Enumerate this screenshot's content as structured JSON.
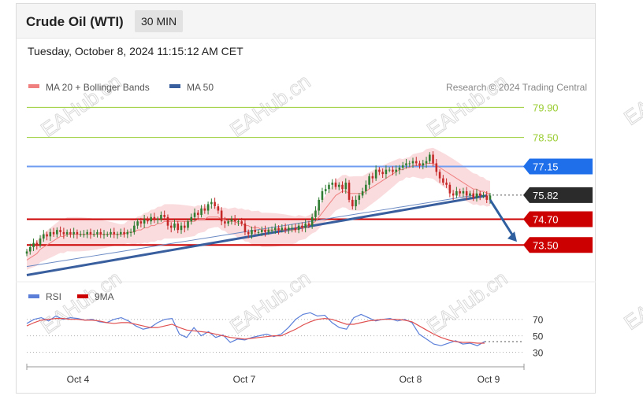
{
  "header": {
    "title": "Crude Oil (WTI)",
    "timeframe": "30 MIN",
    "datetime": "Tuesday, October 8, 2024 11:15:12 AM CET"
  },
  "legend": {
    "ma20": "MA 20 + Bollinger Bands",
    "ma50": "MA 50",
    "credit": "Research © 2024 Trading Central",
    "rsi": "RSI",
    "sma": "9MA"
  },
  "watermark": "EAHub.cn",
  "colors": {
    "candle_up": "#2e7d32",
    "candle_down": "#c62828",
    "bollinger": "#f8c9cc",
    "ma20": "#f08080",
    "ma50": "#3a5f9f",
    "blue_level": "#1f6feb",
    "red_level": "#cc0000",
    "green_level": "#9acd32",
    "rsi": "#5b7fd9",
    "sma": "#e05050"
  },
  "chart_data": [
    {
      "type": "candlestick",
      "name": "price",
      "x_labels": [
        "Oct 4",
        "Oct 7",
        "Oct 8",
        "Oct 9"
      ],
      "levels": [
        {
          "value": 79.9,
          "label": "79.90",
          "kind": "resistance"
        },
        {
          "value": 78.5,
          "label": "78.50",
          "kind": "resistance"
        },
        {
          "value": 77.15,
          "label": "77.15",
          "kind": "pivot"
        },
        {
          "value": 75.82,
          "label": "75.82",
          "kind": "last"
        },
        {
          "value": 74.7,
          "label": "74.70",
          "kind": "support"
        },
        {
          "value": 73.5,
          "label": "73.50",
          "kind": "support"
        }
      ],
      "ylim": [
        71.9,
        80.5
      ],
      "closes": [
        73.2,
        73.4,
        73.6,
        73.5,
        73.8,
        74.0,
        73.9,
        74.1,
        74.0,
        74.2,
        74.1,
        74.0,
        74.1,
        74.0,
        74.1,
        74.0,
        74.0,
        74.0,
        74.1,
        74.0,
        74.0,
        74.1,
        74.0,
        74.0,
        74.0,
        74.1,
        74.0,
        74.0,
        74.1,
        74.0,
        74.1,
        74.1,
        74.4,
        74.6,
        74.5,
        74.7,
        74.6,
        74.8,
        74.7,
        74.7,
        74.9,
        74.8,
        74.4,
        74.3,
        74.5,
        74.2,
        74.4,
        74.3,
        74.6,
        74.8,
        75.0,
        74.9,
        75.2,
        75.1,
        75.4,
        75.5,
        75.3,
        75.1,
        74.6,
        74.5,
        74.6,
        74.7,
        74.6,
        74.6,
        74.5,
        74.1,
        74.0,
        74.2,
        74.1,
        74.1,
        74.2,
        74.1,
        74.2,
        74.2,
        74.3,
        74.2,
        74.3,
        74.2,
        74.3,
        74.3,
        74.2,
        74.4,
        74.3,
        74.5,
        74.4,
        74.8,
        75.1,
        75.6,
        76.0,
        76.1,
        76.3,
        76.4,
        76.2,
        76.3,
        76.1,
        76.4,
        75.6,
        75.3,
        75.6,
        75.8,
        76.0,
        76.3,
        76.7,
        76.6,
        77.0,
        76.9,
        76.8,
        77.0,
        77.0,
        76.9,
        77.0,
        77.1,
        77.2,
        77.3,
        77.3,
        77.4,
        77.3,
        77.2,
        77.3,
        77.4,
        77.7,
        77.3,
        76.9,
        76.6,
        76.4,
        76.3,
        75.9,
        75.8,
        76.0,
        75.9,
        76.0,
        75.8,
        75.9,
        75.7,
        75.9,
        75.8,
        75.8,
        75.6,
        75.8
      ],
      "ma20": [
        72.8,
        72.9,
        73.0,
        73.1,
        73.3,
        73.4,
        73.5,
        73.6,
        73.7,
        73.8,
        73.9,
        73.9,
        74.0,
        74.0,
        74.0,
        74.0,
        74.0,
        74.0,
        74.0,
        74.0,
        74.0,
        74.0,
        74.0,
        74.0,
        74.0,
        74.0,
        74.0,
        74.0,
        74.0,
        74.0,
        74.1,
        74.1,
        74.1,
        74.2,
        74.2,
        74.3,
        74.3,
        74.4,
        74.4,
        74.5,
        74.5,
        74.6,
        74.6,
        74.6,
        74.6,
        74.6,
        74.6,
        74.6,
        74.6,
        74.6,
        74.6,
        74.7,
        74.7,
        74.7,
        74.8,
        74.8,
        74.8,
        74.8,
        74.7,
        74.7,
        74.6,
        74.6,
        74.6,
        74.5,
        74.5,
        74.4,
        74.4,
        74.3,
        74.3,
        74.3,
        74.2,
        74.2,
        74.2,
        74.2,
        74.2,
        74.2,
        74.2,
        74.2,
        74.2,
        74.2,
        74.2,
        74.3,
        74.3,
        74.3,
        74.4,
        74.5,
        74.6,
        74.8,
        75.0,
        75.2,
        75.4,
        75.6,
        75.8,
        75.9,
        76.0,
        76.0,
        75.9,
        75.9,
        75.9,
        75.9,
        75.9,
        76.0,
        76.1,
        76.2,
        76.3,
        76.4,
        76.5,
        76.6,
        76.7,
        76.8,
        76.9,
        77.0,
        77.0,
        77.1,
        77.1,
        77.2,
        77.2,
        77.2,
        77.2,
        77.3,
        77.3,
        77.3,
        77.2,
        77.1,
        77.0,
        76.9,
        76.8,
        76.7,
        76.6,
        76.5,
        76.4,
        76.3,
        76.2,
        76.1,
        76.1,
        76.0,
        76.0,
        75.9,
        75.9
      ],
      "ma50": [
        72.5,
        72.6,
        72.7,
        72.8,
        72.9,
        73.0,
        73.1,
        73.2,
        73.3,
        73.4,
        73.5,
        73.6,
        73.7,
        73.8,
        73.9,
        74.0,
        74.1,
        74.2,
        74.3,
        74.4,
        74.5,
        74.6,
        74.7,
        74.8,
        74.9,
        75.0,
        75.1,
        75.2,
        75.3,
        75.4,
        75.5,
        75.6,
        75.7,
        75.8
      ],
      "trendline_start": 72.1,
      "trendline_end": 75.8
    },
    {
      "type": "line",
      "name": "RSI",
      "ylim": [
        20,
        85
      ],
      "ticks": [
        70,
        50,
        30
      ],
      "series": [
        {
          "name": "RSI",
          "values": [
            65,
            70,
            72,
            68,
            74,
            70,
            72,
            71,
            69,
            70,
            67,
            66,
            70,
            72,
            68,
            62,
            58,
            60,
            66,
            70,
            71,
            52,
            48,
            60,
            50,
            55,
            48,
            51,
            42,
            46,
            45,
            48,
            50,
            52,
            49,
            52,
            60,
            70,
            76,
            78,
            74,
            75,
            66,
            60,
            58,
            72,
            76,
            72,
            68,
            70,
            71,
            68,
            70,
            66,
            52,
            46,
            40,
            38,
            41,
            44,
            40,
            41,
            38,
            43
          ]
        },
        {
          "name": "9MA",
          "values": [
            62,
            66,
            69,
            70,
            71,
            71,
            70,
            70,
            69,
            69,
            68,
            66,
            65,
            66,
            66,
            64,
            62,
            60,
            60,
            62,
            64,
            60,
            57,
            56,
            55,
            54,
            52,
            50,
            48,
            47,
            46,
            47,
            48,
            49,
            50,
            50,
            54,
            58,
            63,
            67,
            70,
            71,
            70,
            67,
            64,
            64,
            66,
            68,
            69,
            70,
            70,
            70,
            69,
            67,
            62,
            57,
            52,
            48,
            45,
            43,
            42,
            42,
            41,
            41
          ]
        }
      ]
    }
  ]
}
